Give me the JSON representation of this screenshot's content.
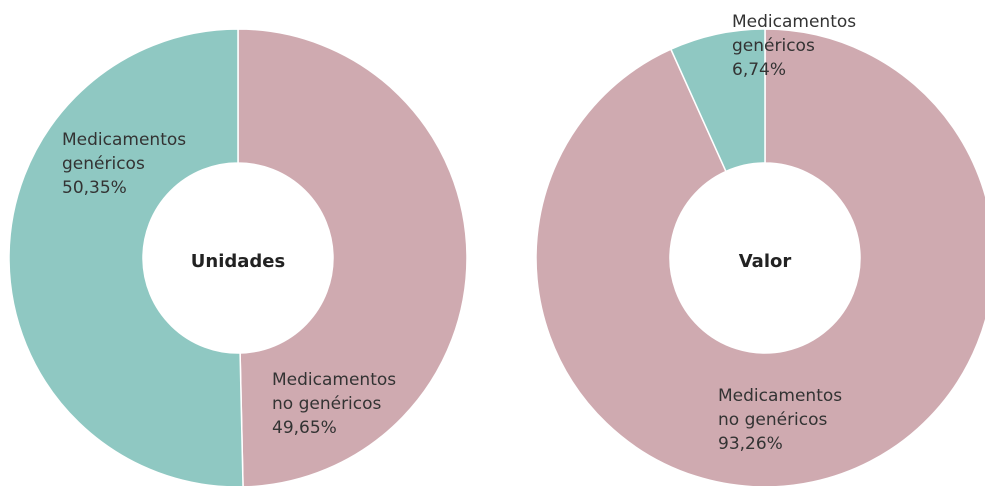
{
  "chart_data": [
    {
      "type": "donut",
      "title": "Unidades",
      "categories": [
        "Medicamentos no genéricos",
        "Medicamentos genéricos"
      ],
      "values": [
        49.65,
        50.35
      ],
      "value_labels": [
        "49,65%",
        "50,35%"
      ],
      "colors": [
        "#cfaab0",
        "#8fc8c2"
      ]
    },
    {
      "type": "donut",
      "title": "Valor",
      "categories": [
        "Medicamentos no genéricos",
        "Medicamentos genéricos"
      ],
      "values": [
        93.26,
        6.74
      ],
      "value_labels": [
        "93,26%",
        "6,74%"
      ],
      "colors": [
        "#cfaab0",
        "#8fc8c2"
      ]
    }
  ]
}
